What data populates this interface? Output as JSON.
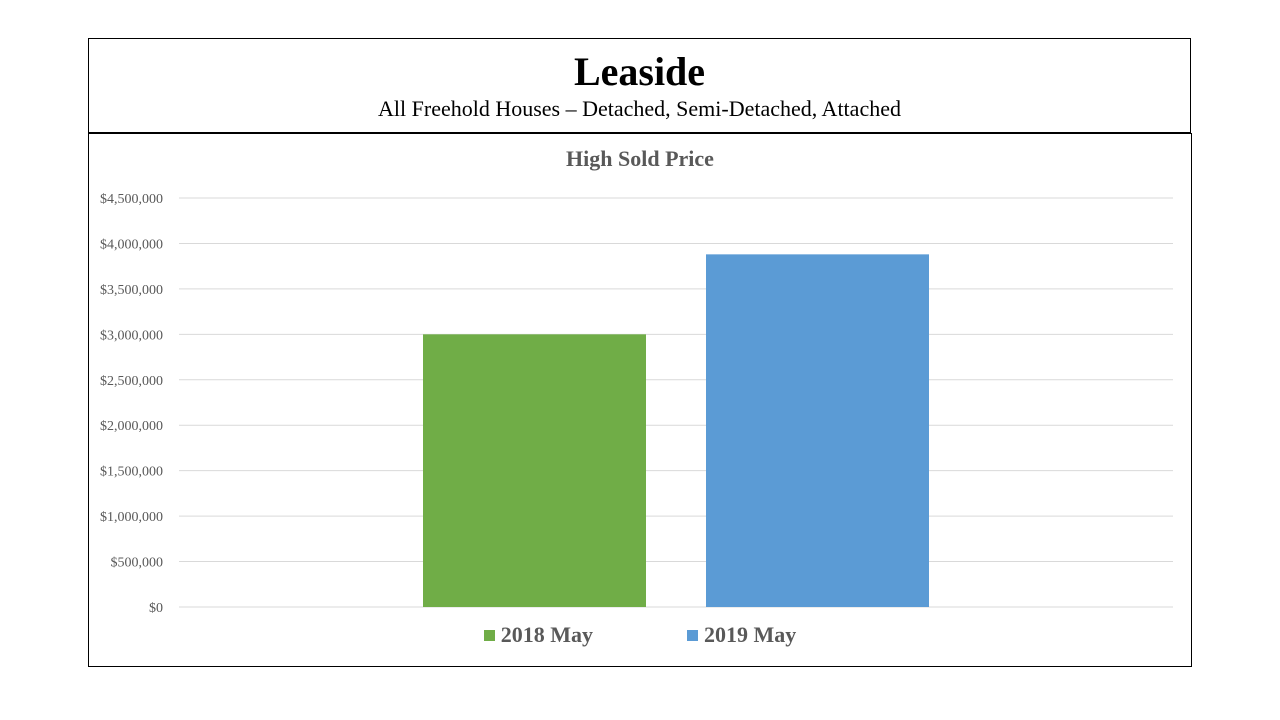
{
  "header": {
    "title": "Leaside",
    "subtitle": "All Freehold Houses – Detached, Semi-Detached, Attached"
  },
  "chart_data": {
    "type": "bar",
    "title": "High Sold Price",
    "categories": [
      ""
    ],
    "series": [
      {
        "name": "2018 May",
        "values": [
          3000000
        ],
        "color": "#70AD47"
      },
      {
        "name": "2019 May",
        "values": [
          3880000
        ],
        "color": "#5B9BD5"
      }
    ],
    "ylim": [
      0,
      4500000
    ],
    "yticks": [
      0,
      500000,
      1000000,
      1500000,
      2000000,
      2500000,
      3000000,
      3500000,
      4000000,
      4500000
    ],
    "ytick_labels": [
      "$0",
      "$500,000",
      "$1,000,000",
      "$1,500,000",
      "$2,000,000",
      "$2,500,000",
      "$3,000,000",
      "$3,500,000",
      "$4,000,000",
      "$4,500,000"
    ],
    "grid": true,
    "legend": "bottom",
    "xlabel": "",
    "ylabel": ""
  }
}
